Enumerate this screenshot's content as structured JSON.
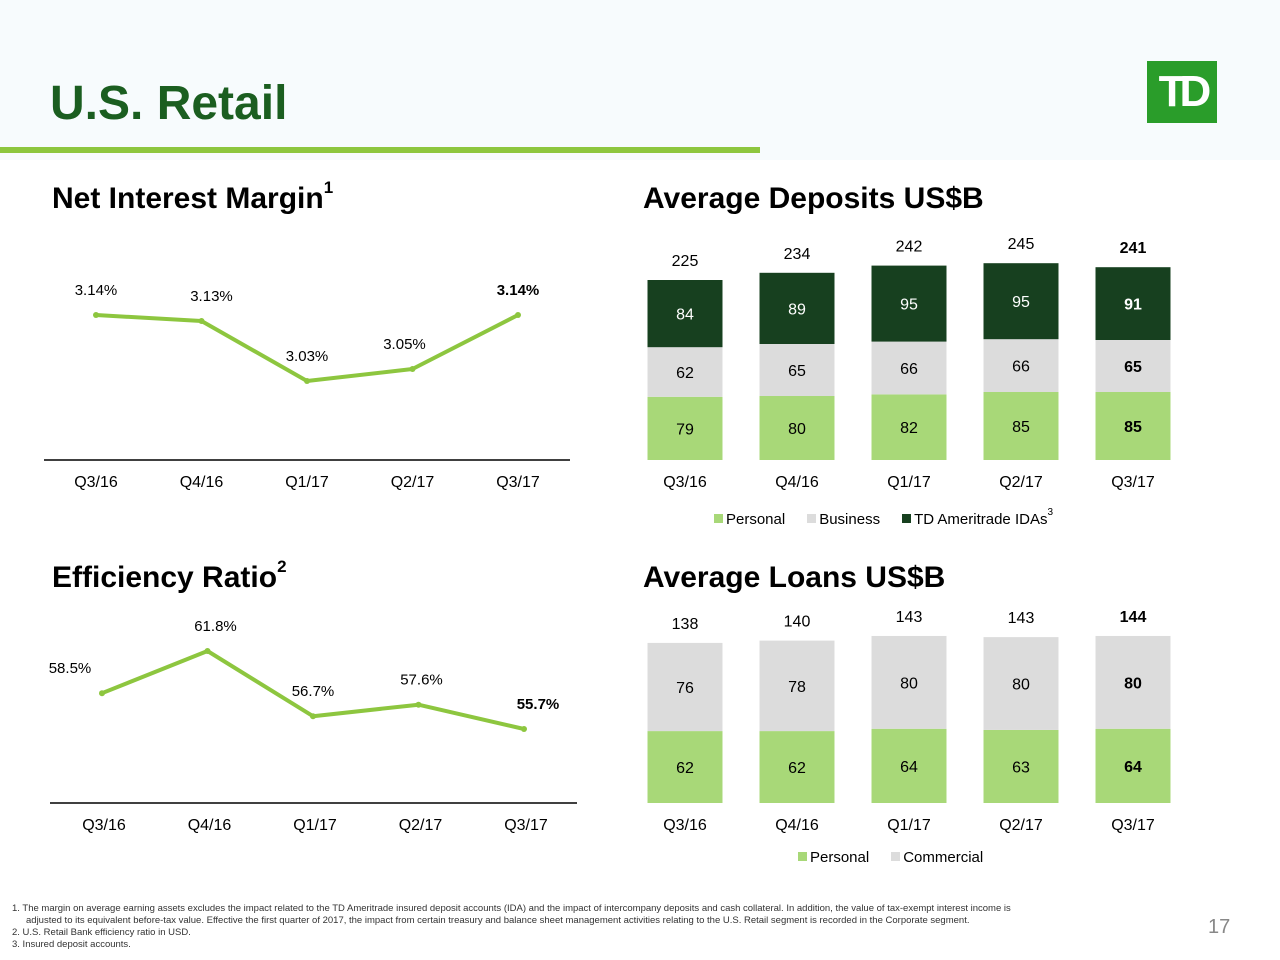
{
  "page": {
    "title": "U.S. Retail",
    "logo_text": "TD",
    "page_number": "17",
    "colors": {
      "title": "#1b5e20",
      "accent_rule": "#8dc63f",
      "line": "#8dc63f",
      "personal": "#a8d878",
      "business": "#dcdcdc",
      "ameritrade": "#17401f",
      "logo": "#2a9d2a"
    }
  },
  "nim": {
    "title": "Net Interest Margin",
    "sup": "1"
  },
  "efficiency": {
    "title": "Efficiency Ratio",
    "sup": "2"
  },
  "deposits": {
    "title": "Average Deposits US$B",
    "legend": {
      "personal": "Personal",
      "business": "Business",
      "ameritrade": "TD Ameritrade IDAs",
      "ameritrade_sup": "3"
    }
  },
  "loans": {
    "title": "Average Loans US$B",
    "legend": {
      "personal": "Personal",
      "commercial": "Commercial"
    }
  },
  "chart_data": [
    {
      "id": "nim",
      "type": "line",
      "title": "Net Interest Margin",
      "categories": [
        "Q3/16",
        "Q4/16",
        "Q1/17",
        "Q2/17",
        "Q3/17"
      ],
      "values": [
        3.14,
        3.13,
        3.03,
        3.05,
        3.14
      ],
      "labels": [
        "3.14%",
        "3.13%",
        "3.03%",
        "3.05%",
        "3.14%"
      ],
      "bold_last": true
    },
    {
      "id": "efficiency",
      "type": "line",
      "title": "Efficiency Ratio",
      "categories": [
        "Q3/16",
        "Q4/16",
        "Q1/17",
        "Q2/17",
        "Q3/17"
      ],
      "values": [
        58.5,
        61.8,
        56.7,
        57.6,
        55.7
      ],
      "labels": [
        "58.5%",
        "61.8%",
        "56.7%",
        "57.6%",
        "55.7%"
      ],
      "bold_last": true
    },
    {
      "id": "deposits",
      "type": "bar",
      "stacked": true,
      "title": "Average Deposits US$B",
      "categories": [
        "Q3/16",
        "Q4/16",
        "Q1/17",
        "Q2/17",
        "Q3/17"
      ],
      "series": [
        {
          "name": "Personal",
          "values": [
            79,
            80,
            82,
            85,
            85
          ]
        },
        {
          "name": "Business",
          "values": [
            62,
            65,
            66,
            66,
            65
          ]
        },
        {
          "name": "TD Ameritrade IDAs",
          "values": [
            84,
            89,
            95,
            95,
            91
          ]
        }
      ],
      "totals": [
        225,
        234,
        242,
        245,
        241
      ],
      "legend": "bottom",
      "bold_last": true
    },
    {
      "id": "loans",
      "type": "bar",
      "stacked": true,
      "title": "Average Loans US$B",
      "categories": [
        "Q3/16",
        "Q4/16",
        "Q1/17",
        "Q2/17",
        "Q3/17"
      ],
      "series": [
        {
          "name": "Personal",
          "values": [
            62,
            62,
            64,
            63,
            64
          ]
        },
        {
          "name": "Commercial",
          "values": [
            76,
            78,
            80,
            80,
            80
          ]
        }
      ],
      "totals": [
        138,
        140,
        143,
        143,
        144
      ],
      "legend": "bottom",
      "bold_last": true
    }
  ],
  "footnotes": [
    "1. The margin on average earning assets excludes the impact related to the TD Ameritrade insured deposit accounts (IDA) and the impact of intercompany deposits and cash collateral. In addition, the value of tax-exempt interest income is",
    "adjusted to its equivalent before-tax value. Effective the first quarter of 2017, the impact from certain treasury and balance sheet management activities relating to the U.S. Retail segment is recorded in the Corporate segment.",
    "2. U.S. Retail Bank efficiency ratio in USD.",
    "3. Insured deposit accounts."
  ]
}
